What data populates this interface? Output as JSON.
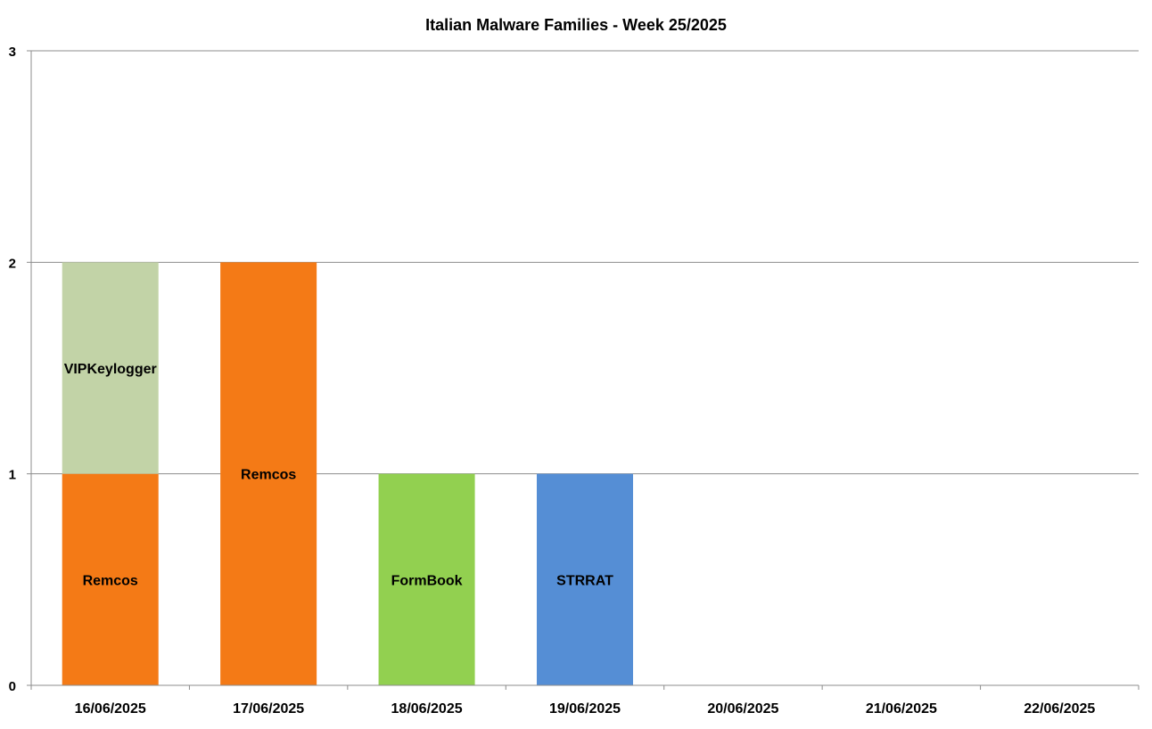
{
  "chart_data": {
    "type": "bar",
    "stacked": true,
    "title": "Italian Malware Families - Week 25/2025",
    "xlabel": "",
    "ylabel": "",
    "categories": [
      "16/06/2025",
      "17/06/2025",
      "18/06/2025",
      "19/06/2025",
      "20/06/2025",
      "21/06/2025",
      "22/06/2025"
    ],
    "ylim": [
      0,
      3
    ],
    "yticks": [
      "0",
      "1",
      "2",
      "3"
    ],
    "grid": true,
    "legend": "none",
    "segments": [
      {
        "category": "16/06/2025",
        "label": "Remcos",
        "value": 1,
        "color": "#f47a16"
      },
      {
        "category": "16/06/2025",
        "label": "VIPKeylogger",
        "value": 1,
        "color": "#c2d3a7"
      },
      {
        "category": "17/06/2025",
        "label": "Remcos",
        "value": 2,
        "color": "#f47a16"
      },
      {
        "category": "18/06/2025",
        "label": "FormBook",
        "value": 1,
        "color": "#92d050"
      },
      {
        "category": "19/06/2025",
        "label": "STRRAT",
        "value": 1,
        "color": "#558ed5"
      }
    ]
  }
}
